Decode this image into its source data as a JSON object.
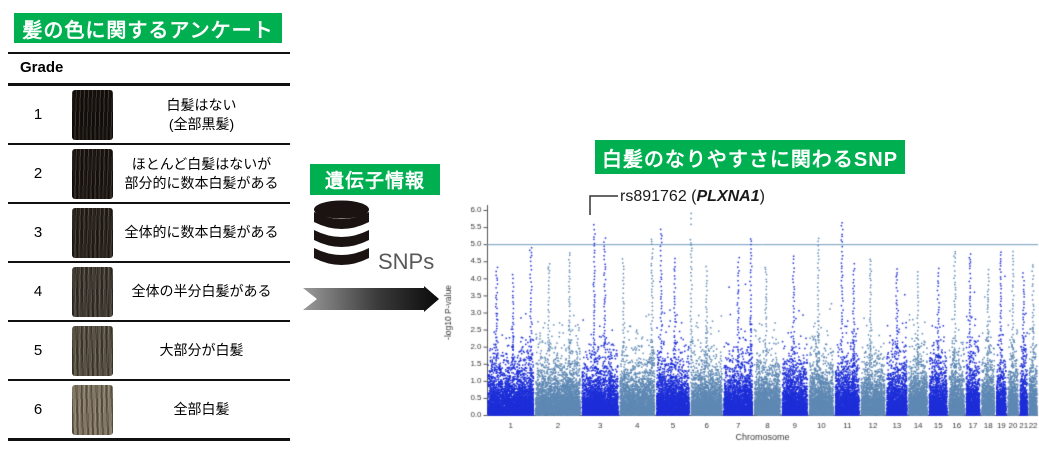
{
  "left_panel": {
    "title": "髪の色に関するアンケート",
    "header": "Grade",
    "rows": [
      {
        "grade": "1",
        "desc_lines": [
          "白髪はない",
          "(全部黒髪)"
        ],
        "swatch": "#17110d"
      },
      {
        "grade": "2",
        "desc_lines": [
          "ほとんど白髪はないが",
          "部分的に数本白髪がある"
        ],
        "swatch": "#1e1712"
      },
      {
        "grade": "3",
        "desc_lines": [
          "全体的に数本白髪がある"
        ],
        "swatch": "#2b241c"
      },
      {
        "grade": "4",
        "desc_lines": [
          "全体の半分白髪がある"
        ],
        "swatch": "#433c32"
      },
      {
        "grade": "5",
        "desc_lines": [
          "大部分が白髪"
        ],
        "swatch": "#5a5242"
      },
      {
        "grade": "6",
        "desc_lines": [
          "全部白髪"
        ],
        "swatch": "#857964"
      }
    ]
  },
  "middle_panel": {
    "title": "遺伝子情報",
    "db_label": "SNPs"
  },
  "right_panel": {
    "title": "白髪のなりやすさに関わるSNP",
    "annotation": {
      "prefix": "rs891762 (",
      "gene": "PLXNA1",
      "suffix": ")"
    }
  },
  "colors": {
    "accent_green": "#00b050",
    "odd_chrom": "#1e2fd8",
    "even_chrom": "#5f89b4",
    "threshold_line": "#6d9cbe",
    "axis_text": "#3a3a3a",
    "icon_black": "#1a1311",
    "snps_text": "#595757"
  },
  "chart_data": {
    "type": "scatter",
    "subtype": "manhattan",
    "title": "白髪のなりやすさに関わるSNP",
    "xlabel": "Chromosome",
    "ylabel": "-log10 P-value",
    "ylim": [
      0,
      6
    ],
    "yticks": [
      0,
      0.5,
      1,
      1.5,
      2,
      2.5,
      3,
      3.5,
      4,
      4.5,
      5,
      5.5,
      6
    ],
    "categories": [
      "1",
      "2",
      "3",
      "4",
      "5",
      "6",
      "7",
      "8",
      "9",
      "10",
      "11",
      "12",
      "13",
      "14",
      "15",
      "16",
      "17",
      "18",
      "19",
      "20",
      "21",
      "22"
    ],
    "chrom_lengths_mb": [
      249,
      243,
      198,
      191,
      181,
      171,
      159,
      146,
      141,
      136,
      135,
      134,
      115,
      107,
      103,
      90,
      81,
      78,
      59,
      63,
      48,
      51
    ],
    "significance_threshold": 5.0,
    "annotated_snp": {
      "id": "rs891762",
      "gene": "PLXNA1",
      "chrom": 3,
      "neg_log10_p": 5.6
    },
    "grid": false,
    "legend": false,
    "seed": 42,
    "base_density_per_mb": 13,
    "notable_peaks": [
      {
        "chrom": 1,
        "pos": 0.2,
        "top": 4.4
      },
      {
        "chrom": 1,
        "pos": 0.55,
        "top": 4.15
      },
      {
        "chrom": 1,
        "pos": 0.92,
        "top": 5.0
      },
      {
        "chrom": 2,
        "pos": 0.3,
        "top": 4.5
      },
      {
        "chrom": 2,
        "pos": 0.75,
        "top": 4.8
      },
      {
        "chrom": 3,
        "pos": 0.34,
        "top": 5.6,
        "annotated": true
      },
      {
        "chrom": 3,
        "pos": 0.62,
        "top": 5.3
      },
      {
        "chrom": 4,
        "pos": 0.12,
        "top": 4.6
      },
      {
        "chrom": 4,
        "pos": 0.9,
        "top": 5.2
      },
      {
        "chrom": 5,
        "pos": 0.16,
        "top": 5.45
      },
      {
        "chrom": 5,
        "pos": 0.55,
        "top": 4.6
      },
      {
        "chrom": 6,
        "pos": 0.03,
        "top": 5.9,
        "sparse_top": true
      },
      {
        "chrom": 6,
        "pos": 0.5,
        "top": 4.4
      },
      {
        "chrom": 7,
        "pos": 0.5,
        "top": 4.7
      },
      {
        "chrom": 7,
        "pos": 0.92,
        "top": 5.2
      },
      {
        "chrom": 8,
        "pos": 0.45,
        "top": 4.4
      },
      {
        "chrom": 9,
        "pos": 0.45,
        "top": 4.7
      },
      {
        "chrom": 10,
        "pos": 0.38,
        "top": 5.2
      },
      {
        "chrom": 11,
        "pos": 0.3,
        "top": 5.65
      },
      {
        "chrom": 11,
        "pos": 0.75,
        "top": 4.5
      },
      {
        "chrom": 12,
        "pos": 0.4,
        "top": 4.6
      },
      {
        "chrom": 13,
        "pos": 0.5,
        "top": 4.3
      },
      {
        "chrom": 14,
        "pos": 0.5,
        "top": 4.2
      },
      {
        "chrom": 15,
        "pos": 0.5,
        "top": 4.3
      },
      {
        "chrom": 16,
        "pos": 0.4,
        "top": 4.8
      },
      {
        "chrom": 17,
        "pos": 0.3,
        "top": 4.75
      },
      {
        "chrom": 18,
        "pos": 0.5,
        "top": 4.3
      },
      {
        "chrom": 19,
        "pos": 0.45,
        "top": 4.9
      },
      {
        "chrom": 20,
        "pos": 0.5,
        "top": 4.85
      },
      {
        "chrom": 21,
        "pos": 0.5,
        "top": 4.2
      },
      {
        "chrom": 22,
        "pos": 0.5,
        "top": 4.4
      }
    ]
  }
}
